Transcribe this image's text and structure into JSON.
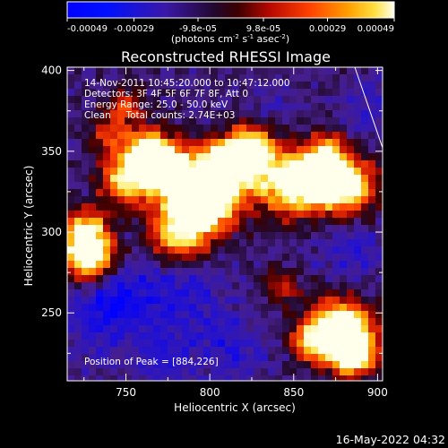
{
  "chart_data": {
    "type": "heatmap",
    "title": "Reconstructed RHESSI Image",
    "xlabel": "Heliocentric X (arcsec)",
    "ylabel": "Heliocentric Y (arcsec)",
    "xlim": [
      715,
      903
    ],
    "ylim": [
      208,
      402
    ],
    "x_ticks": [
      750,
      800,
      850,
      900
    ],
    "y_ticks": [
      250,
      300,
      350,
      400
    ],
    "colorbar": {
      "ticks": [
        "-0.00049",
        "-0.00029",
        "-9.8e-05",
        "9.8e-05",
        "0.00029",
        "0.00049"
      ],
      "range": [
        -0.00049,
        0.00049
      ],
      "unit_parts": [
        "(photons cm",
        "-2",
        " s",
        "-1",
        " asec",
        "-2",
        ")"
      ]
    },
    "annotations": [
      "14-Nov-2011 10:45:20.000 to 10:47:12.000",
      "Detectors: 3F 4F 5F 6F 7F 8F, Att 0",
      "Energy Range: 25.0 - 50.0 keV",
      "Clean     Total counts: 2.74E+03"
    ],
    "peak_label": "Position of Peak = [884,226]",
    "peak_position": [
      884,
      226
    ],
    "grid": false
  },
  "footer": {
    "timestamp": "16-May-2022 04:32"
  }
}
